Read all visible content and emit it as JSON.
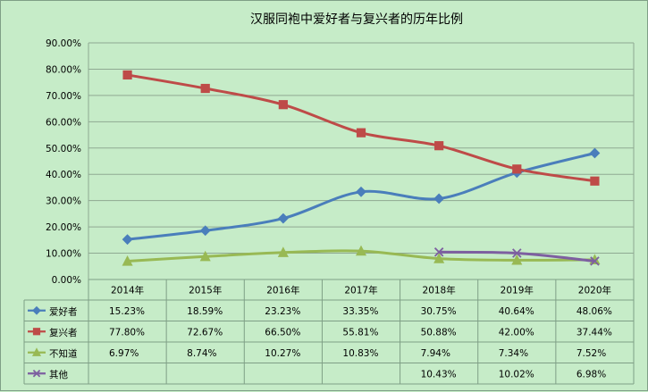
{
  "chart_data": {
    "type": "line",
    "title": "汉服同袍中爱好者与复兴者的历年比例",
    "xlabel": "",
    "ylabel": "",
    "categories": [
      "2014年",
      "2015年",
      "2016年",
      "2017年",
      "2018年",
      "2019年",
      "2020年"
    ],
    "ylim": [
      0,
      0.9
    ],
    "ytick_step": 0.1,
    "yticks": [
      "0.00%",
      "10.00%",
      "20.00%",
      "30.00%",
      "40.00%",
      "50.00%",
      "60.00%",
      "70.00%",
      "80.00%",
      "90.00%"
    ],
    "grid": true,
    "legend": "data-table",
    "series": [
      {
        "name": "爱好者",
        "color": "#4a7ebb",
        "marker": "diamond",
        "values": [
          0.1523,
          0.1859,
          0.2323,
          0.3335,
          0.3075,
          0.4064,
          0.4806
        ],
        "labels": [
          "15.23%",
          "18.59%",
          "23.23%",
          "33.35%",
          "30.75%",
          "40.64%",
          "48.06%"
        ]
      },
      {
        "name": "复兴者",
        "color": "#be4b48",
        "marker": "square",
        "values": [
          0.778,
          0.7267,
          0.665,
          0.5581,
          0.5088,
          0.42,
          0.3744
        ],
        "labels": [
          "77.80%",
          "72.67%",
          "66.50%",
          "55.81%",
          "50.88%",
          "42.00%",
          "37.44%"
        ]
      },
      {
        "name": "不知道",
        "color": "#98b954",
        "marker": "triangle",
        "values": [
          0.0697,
          0.0874,
          0.1027,
          0.1083,
          0.0794,
          0.0734,
          0.0752
        ],
        "labels": [
          "6.97%",
          "8.74%",
          "10.27%",
          "10.83%",
          "7.94%",
          "7.34%",
          "7.52%"
        ]
      },
      {
        "name": "其他",
        "color": "#7d5fa0",
        "marker": "x",
        "values": [
          null,
          null,
          null,
          null,
          0.1043,
          0.1002,
          0.0698
        ],
        "labels": [
          "",
          "",
          "",
          "",
          "10.43%",
          "10.02%",
          "6.98%"
        ]
      }
    ]
  }
}
